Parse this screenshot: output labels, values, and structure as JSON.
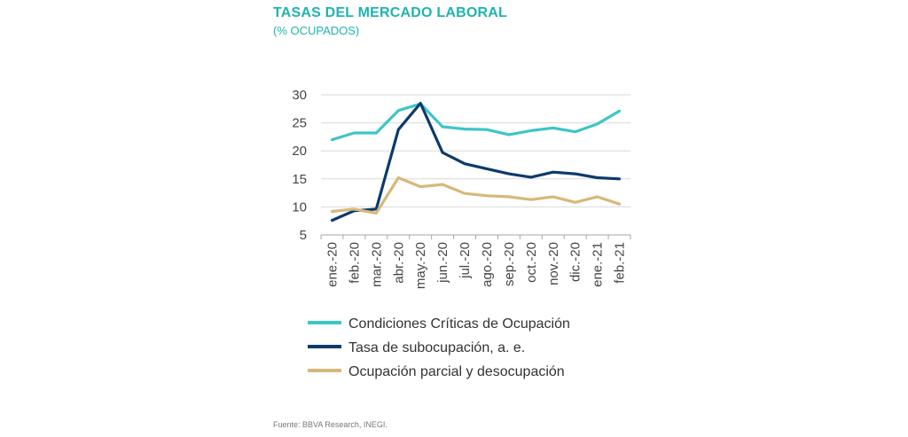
{
  "header": {
    "title": "TASAS DEL MERCADO LABORAL",
    "subtitle": "(% OCUPADOS)"
  },
  "footer": {
    "source": "Fuente: BBVA Research, INEGI."
  },
  "chart_data": {
    "type": "line",
    "categories": [
      "ene.-20",
      "feb.-20",
      "mar.-20",
      "abr.-20",
      "may.-20",
      "jun.-20",
      "jul.-20",
      "ago.-20",
      "sep.-20",
      "oct.-20",
      "nov.-20",
      "dic.-20",
      "ene.-21",
      "feb.-21"
    ],
    "ylim": [
      5,
      30
    ],
    "yticks": [
      5,
      10,
      15,
      20,
      25,
      30
    ],
    "grid": true,
    "legend_position": "bottom",
    "series": [
      {
        "name": "Condiciones Críticas de Ocupación",
        "color": "#3cc6c8",
        "values": [
          22.0,
          23.2,
          23.2,
          27.2,
          28.4,
          24.3,
          23.9,
          23.8,
          22.9,
          23.6,
          24.1,
          23.4,
          24.8,
          27.1
        ]
      },
      {
        "name": "Tasa de subocupación, a. e.",
        "color": "#0c3b6b",
        "values": [
          7.6,
          9.3,
          9.6,
          23.8,
          28.5,
          19.7,
          17.7,
          16.8,
          15.9,
          15.3,
          16.2,
          15.9,
          15.2,
          15.0
        ]
      },
      {
        "name": "Ocupación parcial y desocupación",
        "color": "#d6b878",
        "values": [
          9.2,
          9.6,
          8.9,
          15.2,
          13.6,
          14.0,
          12.4,
          12.0,
          11.8,
          11.3,
          11.8,
          10.8,
          11.8,
          10.5
        ]
      }
    ]
  }
}
